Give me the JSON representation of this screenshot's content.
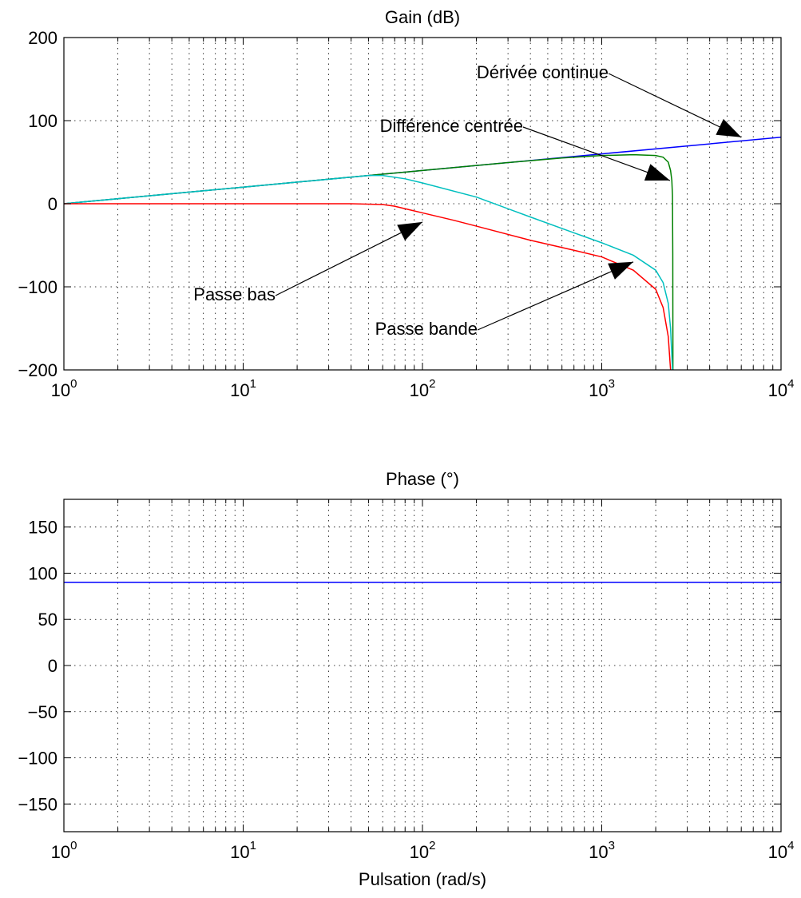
{
  "chart_data": [
    {
      "type": "line",
      "title": "Gain (dB)",
      "xlabel": "",
      "ylabel": "",
      "x_scale": "log",
      "xlim": [
        1,
        10000
      ],
      "ylim": [
        -200,
        200
      ],
      "grid": true,
      "x_ticks": [
        1,
        10,
        100,
        1000,
        10000
      ],
      "x_tick_labels": [
        [
          "10",
          "0"
        ],
        [
          "10",
          "1"
        ],
        [
          "10",
          "2"
        ],
        [
          "10",
          "3"
        ],
        [
          "10",
          "4"
        ]
      ],
      "y_ticks": [
        -200,
        -100,
        0,
        100,
        200
      ],
      "y_tick_labels": [
        "−200",
        "−100",
        "0",
        "100",
        "200"
      ],
      "series": [
        {
          "color": "#0000ff",
          "x": [
            1,
            10,
            100,
            1000,
            10000
          ],
          "y": [
            0,
            20,
            40,
            60,
            80
          ]
        },
        {
          "color": "#008000",
          "x": [
            1,
            10,
            50,
            100,
            300,
            600,
            1000,
            1500,
            2000,
            2200,
            2350,
            2420,
            2460,
            2480,
            2490,
            2495
          ],
          "y": [
            0,
            20,
            34,
            40,
            49.5,
            55,
            58,
            59,
            58,
            56,
            50,
            40,
            28,
            10,
            -60,
            -200
          ]
        },
        {
          "color": "#00bfbf",
          "x": [
            1,
            10,
            30,
            50,
            60,
            80,
            100,
            200,
            400,
            700,
            1000,
            1500,
            2000,
            2200,
            2350,
            2420,
            2480
          ],
          "y": [
            0,
            20,
            29.5,
            34,
            34,
            30,
            25,
            8,
            -16,
            -35,
            -47,
            -62,
            -80,
            -95,
            -120,
            -150,
            -200
          ]
        },
        {
          "color": "#ff0000",
          "x": [
            1,
            10,
            40,
            60,
            70,
            80,
            100,
            150,
            200,
            400,
            700,
            1000,
            1500,
            2000,
            2200,
            2350,
            2420
          ],
          "y": [
            0,
            0,
            0,
            -1,
            -3,
            -6,
            -11,
            -20,
            -27,
            -44,
            -56,
            -64,
            -80,
            -103,
            -125,
            -160,
            -200
          ]
        }
      ],
      "annotations": [
        {
          "text": "Dérivée continue",
          "target": [
            6000,
            80
          ]
        },
        {
          "text": "Différence centrée",
          "target": [
            2400,
            28
          ]
        },
        {
          "text": "Passe bas",
          "target": [
            100,
            -22
          ]
        },
        {
          "text": "Passe bande",
          "target": [
            1500,
            -70
          ]
        }
      ]
    },
    {
      "type": "line",
      "title": "Phase (°)",
      "xlabel": "Pulsation (rad/s)",
      "ylabel": "",
      "x_scale": "log",
      "xlim": [
        1,
        10000
      ],
      "ylim": [
        -180,
        180
      ],
      "grid": true,
      "x_ticks": [
        1,
        10,
        100,
        1000,
        10000
      ],
      "x_tick_labels": [
        [
          "10",
          "0"
        ],
        [
          "10",
          "1"
        ],
        [
          "10",
          "2"
        ],
        [
          "10",
          "3"
        ],
        [
          "10",
          "4"
        ]
      ],
      "y_ticks": [
        -150,
        -100,
        -50,
        0,
        50,
        100,
        150
      ],
      "y_tick_labels": [
        "−150",
        "−100",
        "−50",
        "0",
        "50",
        "100",
        "150"
      ],
      "series": [
        {
          "color": "#0000ff",
          "x": [
            1,
            10000
          ],
          "y": [
            90,
            90
          ]
        }
      ],
      "annotations": []
    }
  ]
}
